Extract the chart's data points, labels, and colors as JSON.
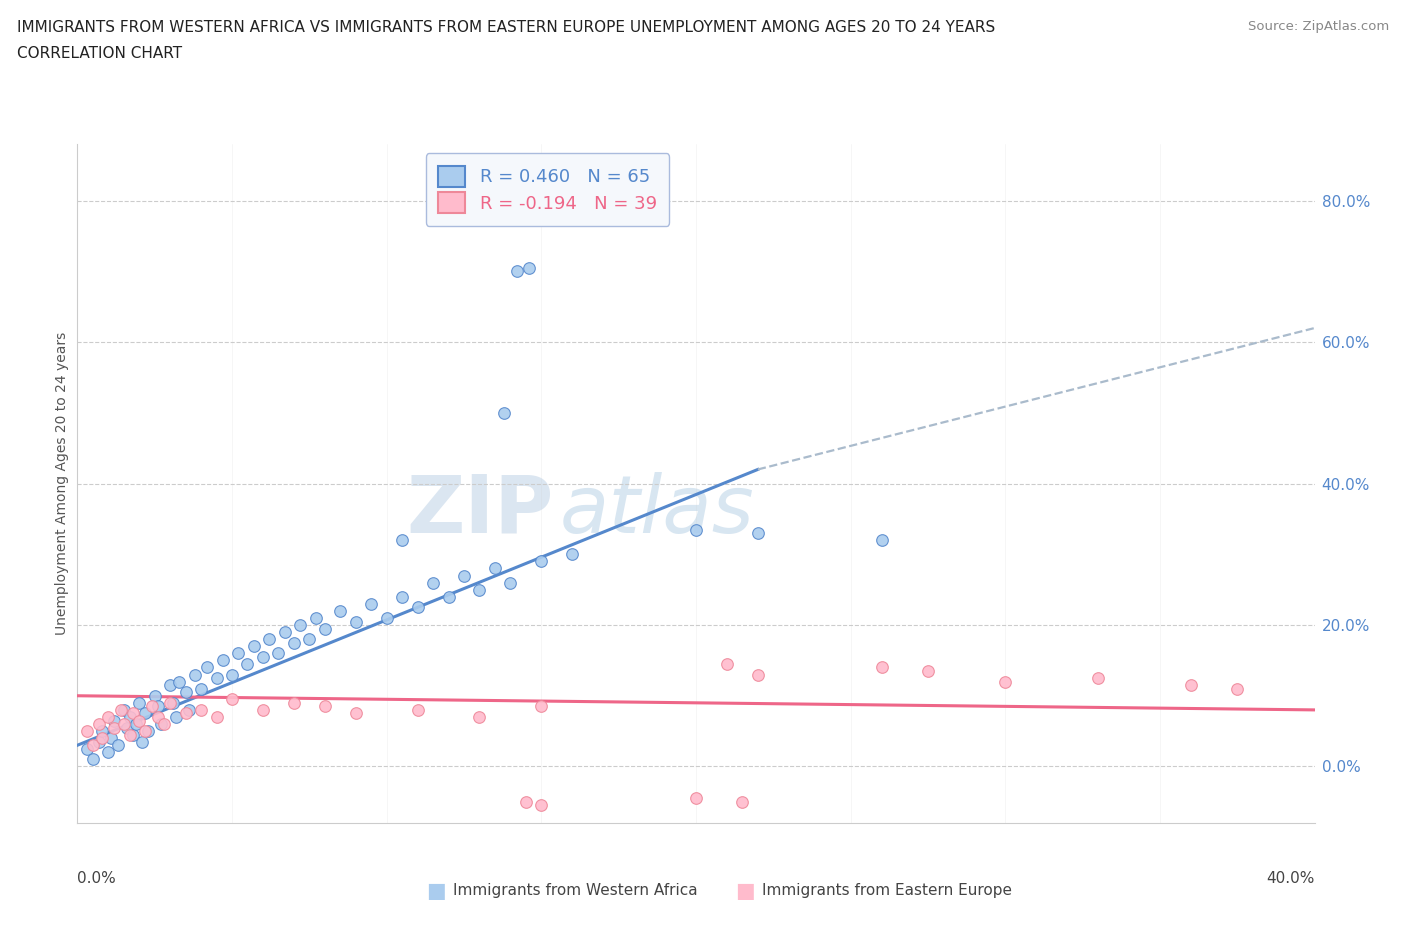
{
  "title_line1": "IMMIGRANTS FROM WESTERN AFRICA VS IMMIGRANTS FROM EASTERN EUROPE UNEMPLOYMENT AMONG AGES 20 TO 24 YEARS",
  "title_line2": "CORRELATION CHART",
  "source": "Source: ZipAtlas.com",
  "ylabel": "Unemployment Among Ages 20 to 24 years",
  "ytick_values": [
    0,
    20,
    40,
    60,
    80
  ],
  "xlim": [
    0,
    40
  ],
  "ylim": [
    -8,
    88
  ],
  "legend1_label": "Immigrants from Western Africa",
  "legend2_label": "Immigrants from Eastern Europe",
  "R1": 0.46,
  "N1": 65,
  "R2": -0.194,
  "N2": 39,
  "watermark_part1": "ZIP",
  "watermark_part2": "atlas",
  "blue_line_color": "#5588cc",
  "pink_line_color": "#ee6688",
  "dashed_line_color": "#aabbcc",
  "scatter_blue_color": "#aaccee",
  "scatter_blue_edge": "#5588cc",
  "scatter_pink_color": "#ffbbcc",
  "scatter_pink_edge": "#ee8899",
  "grid_color": "#cccccc",
  "background_color": "#ffffff",
  "legend_bg": "#f5f8fc",
  "legend_edge": "#aabbdd",
  "blue_line_x": [
    0,
    22
  ],
  "blue_line_y": [
    3,
    42
  ],
  "dashed_line_x": [
    22,
    40
  ],
  "dashed_line_y": [
    42,
    62
  ],
  "pink_line_x": [
    0,
    40
  ],
  "pink_line_y": [
    10,
    8
  ],
  "scatter_blue": [
    [
      0.3,
      2.5
    ],
    [
      0.5,
      1.0
    ],
    [
      0.7,
      3.5
    ],
    [
      0.8,
      5.0
    ],
    [
      1.0,
      2.0
    ],
    [
      1.1,
      4.0
    ],
    [
      1.2,
      6.5
    ],
    [
      1.3,
      3.0
    ],
    [
      1.5,
      8.0
    ],
    [
      1.6,
      5.5
    ],
    [
      1.7,
      7.0
    ],
    [
      1.8,
      4.5
    ],
    [
      1.9,
      6.0
    ],
    [
      2.0,
      9.0
    ],
    [
      2.1,
      3.5
    ],
    [
      2.2,
      7.5
    ],
    [
      2.3,
      5.0
    ],
    [
      2.5,
      10.0
    ],
    [
      2.6,
      8.5
    ],
    [
      2.7,
      6.0
    ],
    [
      3.0,
      11.5
    ],
    [
      3.1,
      9.0
    ],
    [
      3.2,
      7.0
    ],
    [
      3.3,
      12.0
    ],
    [
      3.5,
      10.5
    ],
    [
      3.6,
      8.0
    ],
    [
      3.8,
      13.0
    ],
    [
      4.0,
      11.0
    ],
    [
      4.2,
      14.0
    ],
    [
      4.5,
      12.5
    ],
    [
      4.7,
      15.0
    ],
    [
      5.0,
      13.0
    ],
    [
      5.2,
      16.0
    ],
    [
      5.5,
      14.5
    ],
    [
      5.7,
      17.0
    ],
    [
      6.0,
      15.5
    ],
    [
      6.2,
      18.0
    ],
    [
      6.5,
      16.0
    ],
    [
      6.7,
      19.0
    ],
    [
      7.0,
      17.5
    ],
    [
      7.2,
      20.0
    ],
    [
      7.5,
      18.0
    ],
    [
      7.7,
      21.0
    ],
    [
      8.0,
      19.5
    ],
    [
      8.5,
      22.0
    ],
    [
      9.0,
      20.5
    ],
    [
      9.5,
      23.0
    ],
    [
      10.0,
      21.0
    ],
    [
      10.5,
      24.0
    ],
    [
      11.0,
      22.5
    ],
    [
      11.5,
      26.0
    ],
    [
      12.0,
      24.0
    ],
    [
      12.5,
      27.0
    ],
    [
      13.0,
      25.0
    ],
    [
      13.5,
      28.0
    ],
    [
      14.0,
      26.0
    ],
    [
      15.0,
      29.0
    ],
    [
      16.0,
      30.0
    ],
    [
      10.5,
      32.0
    ],
    [
      20.0,
      33.5
    ],
    [
      14.2,
      70.0
    ],
    [
      14.6,
      70.5
    ],
    [
      13.8,
      50.0
    ],
    [
      22.0,
      33.0
    ],
    [
      26.0,
      32.0
    ]
  ],
  "scatter_pink": [
    [
      0.3,
      5.0
    ],
    [
      0.5,
      3.0
    ],
    [
      0.7,
      6.0
    ],
    [
      0.8,
      4.0
    ],
    [
      1.0,
      7.0
    ],
    [
      1.2,
      5.5
    ],
    [
      1.4,
      8.0
    ],
    [
      1.5,
      6.0
    ],
    [
      1.7,
      4.5
    ],
    [
      1.8,
      7.5
    ],
    [
      2.0,
      6.5
    ],
    [
      2.2,
      5.0
    ],
    [
      2.4,
      8.5
    ],
    [
      2.6,
      7.0
    ],
    [
      2.8,
      6.0
    ],
    [
      3.0,
      9.0
    ],
    [
      3.5,
      7.5
    ],
    [
      4.0,
      8.0
    ],
    [
      4.5,
      7.0
    ],
    [
      5.0,
      9.5
    ],
    [
      6.0,
      8.0
    ],
    [
      7.0,
      9.0
    ],
    [
      8.0,
      8.5
    ],
    [
      9.0,
      7.5
    ],
    [
      11.0,
      8.0
    ],
    [
      13.0,
      7.0
    ],
    [
      15.0,
      8.5
    ],
    [
      21.0,
      14.5
    ],
    [
      22.0,
      13.0
    ],
    [
      26.0,
      14.0
    ],
    [
      27.5,
      13.5
    ],
    [
      30.0,
      12.0
    ],
    [
      33.0,
      12.5
    ],
    [
      36.0,
      11.5
    ],
    [
      37.5,
      11.0
    ],
    [
      14.5,
      -5.0
    ],
    [
      15.0,
      -5.5
    ],
    [
      20.0,
      -4.5
    ],
    [
      21.5,
      -5.0
    ]
  ]
}
